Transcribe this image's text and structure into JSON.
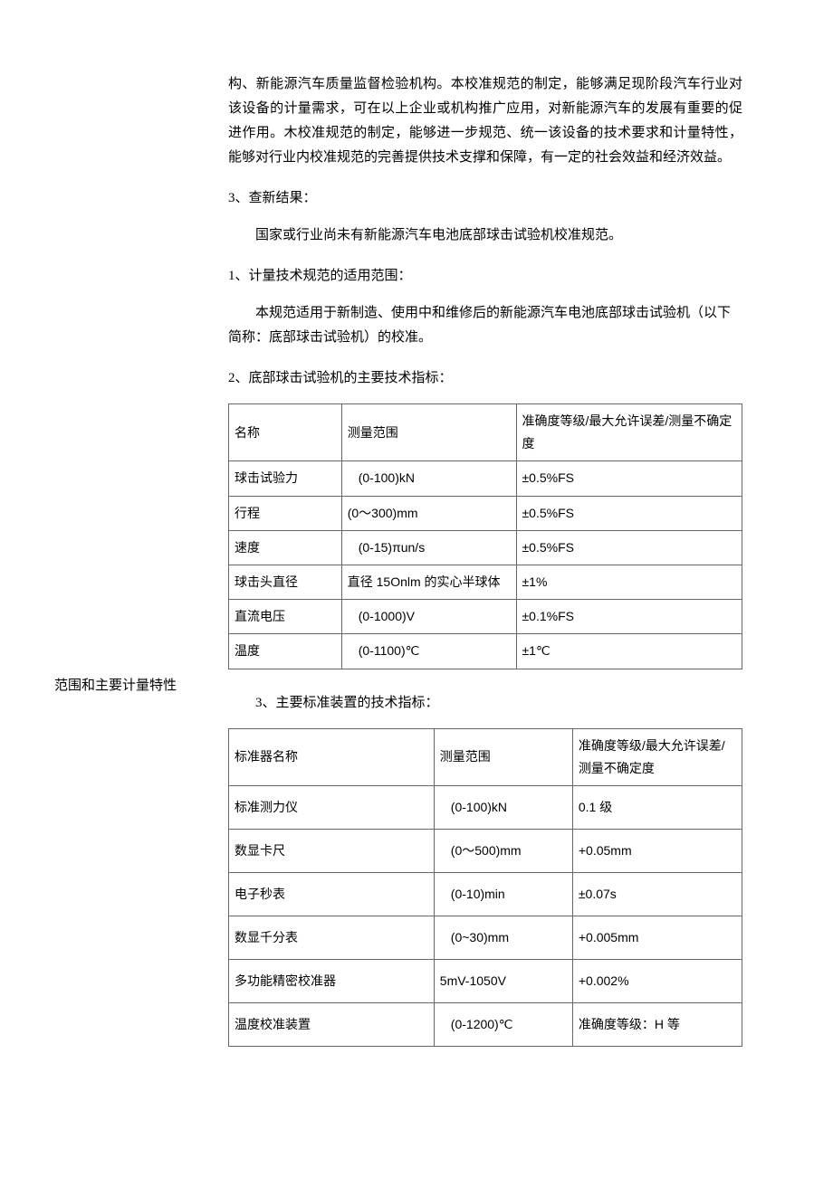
{
  "leftLabel": "范围和主要计量特性",
  "intro": "构、新能源汽车质量监督检验机构。本校准规范的制定，能够满足现阶段汽车行业对该设备的计量需求，可在以上企业或机构推广应用，对新能源汽车的发展有重要的促进作用。木校准规范的制定，能够进一步规范、统一该设备的技术要求和计量特性，能够对行业内校准规范的完善提供技术支撑和保障，有一定的社会效益和经济效益。",
  "sec3": {
    "title": "3、查新结果：",
    "body": "国家或行业尚未有新能源汽车电池底部球击试验机校准规范。"
  },
  "sec1": {
    "title": "1、计量技术规范的适用范围：",
    "body": "本规范适用于新制造、使用中和维修后的新能源汽车电池底部球击试验机（以下简称：底部球击试验机）的校准。"
  },
  "sec2": {
    "title": "2、底部球击试验机的主要技术指标："
  },
  "table1": {
    "columns": [
      "名称",
      "测量范围",
      "准确度等级/最大允许误差/测量不确定度"
    ],
    "rows": [
      [
        "球击试验力",
        "(0-100)kN",
        "±0.5%FS"
      ],
      [
        "行程",
        "(0～300)mm",
        "±0.5%FS"
      ],
      [
        "速度",
        "(0-15)πun/s",
        "±0.5%FS"
      ],
      [
        "球击头直径",
        "直径 15Onlm 的实心半球体",
        "±1%"
      ],
      [
        "直流电压",
        "(0-1000)V",
        "±0.1%FS"
      ],
      [
        "温度",
        "(0-1100)℃",
        "±1℃"
      ]
    ]
  },
  "sec3b": {
    "title": "3、主要标准装置的技术指标："
  },
  "table2": {
    "columns": [
      "标准器名称",
      "测量范围",
      "准确度等级/最大允许误差/测量不确定度"
    ],
    "rows": [
      [
        "标准测力仪",
        "(0-100)kN",
        "0.1 级"
      ],
      [
        "数显卡尺",
        "(0～500)mm",
        "+0.05mm"
      ],
      [
        "电子秒表",
        "(0-10)min",
        "±0.07s"
      ],
      [
        "数显千分表",
        "(0~30)mm",
        "+0.005mm"
      ],
      [
        "多功能精密校准器",
        "5mV-1050V",
        "+0.002%"
      ],
      [
        "温度校准装置",
        "(0-1200)℃",
        "准确度等级：H 等"
      ]
    ]
  }
}
